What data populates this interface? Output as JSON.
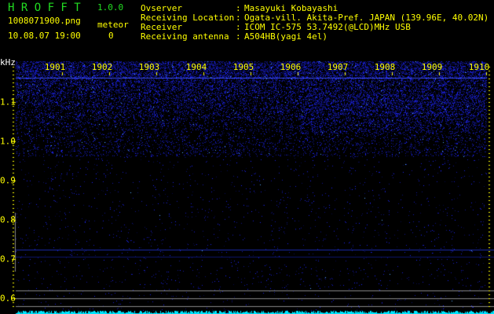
{
  "app": {
    "name": "H R O F F T",
    "version": "1.0.0"
  },
  "file": {
    "name": "1008071900.png",
    "datetime": "10.08.07 19:00"
  },
  "meteor": {
    "label": "meteor",
    "count": "0"
  },
  "info": [
    {
      "label": "Ovserver",
      "value": "Masayuki Kobayashi"
    },
    {
      "label": "Receiving Location",
      "value": "Ogata-vill. Akita-Pref. JAPAN (139.96E, 40.02N)"
    },
    {
      "label": "Receiver",
      "value": "ICOM IC-575 53.7492(@LCD)MHz USB"
    },
    {
      "label": "Receiving antenna",
      "value": "A504HB(yagi 4el)"
    }
  ],
  "chart_data": {
    "type": "heatmap",
    "ylabel": "kHz",
    "x_ticks": [
      "1901",
      "1902",
      "1903",
      "1904",
      "1905",
      "1906",
      "1907",
      "1908",
      "1909",
      "1910"
    ],
    "y_ticks": [
      "1.1",
      "1.0",
      "0.9",
      "0.8",
      "0.7",
      "0.6"
    ],
    "ylim": [
      0.58,
      1.2
    ],
    "xlim": [
      "1900",
      "1910"
    ],
    "colors": {
      "text": "#ffff00",
      "signal": "#2233ff",
      "noise_bar": "#00e5ff",
      "title": "#22dd22"
    }
  }
}
